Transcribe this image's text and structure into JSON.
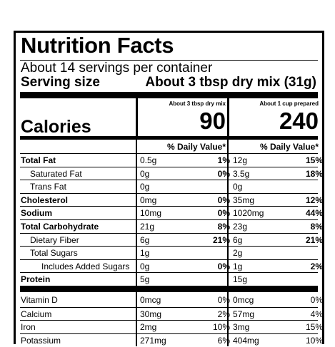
{
  "title": "Nutrition Facts",
  "servings_per_container": "About 14 servings per container",
  "serving_size_label": "Serving size",
  "serving_size_value": "About 3 tbsp dry mix (31g)",
  "columns": [
    {
      "header": "About 3 tbsp dry mix",
      "calories": "90"
    },
    {
      "header": "About 1 cup prepared",
      "calories": "240"
    }
  ],
  "calories_label": "Calories",
  "daily_value_header": "% Daily Value*",
  "nutrients": [
    {
      "label": "Total Fat",
      "bold": true,
      "indent": 0,
      "a_amt": "0.5g",
      "a_dv": "1%",
      "b_amt": "12g",
      "b_dv": "15%"
    },
    {
      "label": "Saturated Fat",
      "bold": false,
      "indent": 1,
      "a_amt": "0g",
      "a_dv": "0%",
      "b_amt": "3.5g",
      "b_dv": "18%"
    },
    {
      "label": "Trans Fat",
      "bold": false,
      "indent": 1,
      "a_amt": "0g",
      "a_dv": "",
      "b_amt": "0g",
      "b_dv": ""
    },
    {
      "label": "Cholesterol",
      "bold": true,
      "indent": 0,
      "a_amt": "0mg",
      "a_dv": "0%",
      "b_amt": "35mg",
      "b_dv": "12%"
    },
    {
      "label": "Sodium",
      "bold": true,
      "indent": 0,
      "a_amt": "10mg",
      "a_dv": "0%",
      "b_amt": "1020mg",
      "b_dv": "44%"
    },
    {
      "label": "Total Carbohydrate",
      "bold": true,
      "indent": 0,
      "a_amt": "21g",
      "a_dv": "8%",
      "b_amt": "23g",
      "b_dv": "8%"
    },
    {
      "label": "Dietary Fiber",
      "bold": false,
      "indent": 1,
      "a_amt": "6g",
      "a_dv": "21%",
      "b_amt": "6g",
      "b_dv": "21%"
    },
    {
      "label": "Total Sugars",
      "bold": false,
      "indent": 1,
      "a_amt": "1g",
      "a_dv": "",
      "b_amt": "2g",
      "b_dv": ""
    },
    {
      "label": "Includes Added Sugars",
      "bold": false,
      "indent": 2,
      "a_amt": "0g",
      "a_dv": "0%",
      "b_amt": "1g",
      "b_dv": "2%"
    },
    {
      "label": "Protein",
      "bold": true,
      "indent": 0,
      "a_amt": "5g",
      "a_dv": "",
      "b_amt": "15g",
      "b_dv": ""
    }
  ],
  "vitamins": [
    {
      "label": "Vitamin D",
      "a_amt": "0mcg",
      "a_dv": "0%",
      "b_amt": "0mcg",
      "b_dv": "0%"
    },
    {
      "label": "Calcium",
      "a_amt": "30mg",
      "a_dv": "2%",
      "b_amt": "57mg",
      "b_dv": "4%"
    },
    {
      "label": "Iron",
      "a_amt": "2mg",
      "a_dv": "10%",
      "b_amt": "3mg",
      "b_dv": "15%"
    },
    {
      "label": "Potassium",
      "a_amt": "271mg",
      "a_dv": "6%",
      "b_amt": "404mg",
      "b_dv": "10%"
    }
  ]
}
